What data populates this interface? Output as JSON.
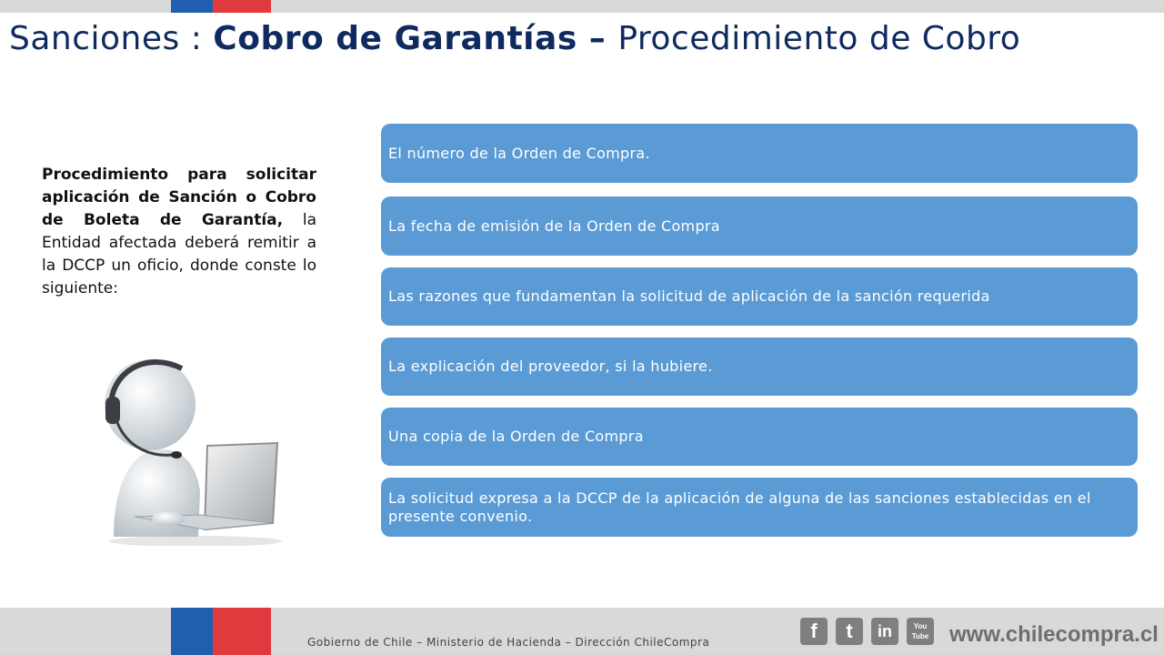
{
  "header": {
    "title_part1": "Sanciones : ",
    "title_bold": "Cobro de Garantías – ",
    "title_part2": "Procedimiento de Cobro"
  },
  "intro": {
    "bold": "Procedimiento para solicitar aplicación de Sanción o Cobro de Boleta de Garantía,",
    "normal": " la Entidad afectada deberá remitir a la DCCP un oficio, donde conste lo siguiente:"
  },
  "items": [
    "El número de la Orden de Compra.",
    "La fecha de emisión de la Orden de Compra",
    "Las razones que fundamentan la solicitud de aplicación de la sanción requerida",
    "La explicación del proveedor, si la hubiere.",
    "Una copia de la Orden de Compra",
    "La solicitud expresa a la DCCP de la aplicación de alguna de las sanciones establecidas en el presente convenio."
  ],
  "footer": {
    "text": "Gobierno de Chile – Ministerio  de Hacienda – Dirección  ChileCompra",
    "website": "www.chilecompra.cl",
    "social_icons": [
      "facebook-icon",
      "twitter-icon",
      "linkedin-icon",
      "youtube-icon"
    ],
    "social_labels": [
      "f",
      "t",
      "in",
      "You Tube"
    ]
  },
  "colors": {
    "title": "#0f2a5f",
    "item_bg": "#5b9bd5",
    "flag_blue": "#1f5fae",
    "flag_red": "#e0393e"
  }
}
